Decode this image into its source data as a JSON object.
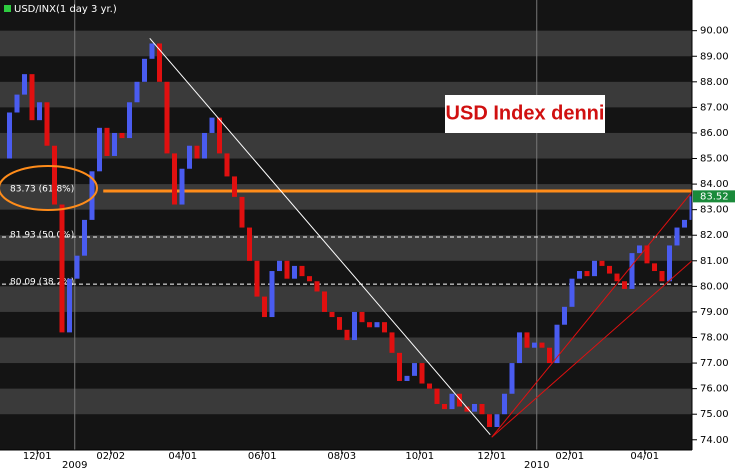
{
  "chart_data": {
    "type": "candlestick",
    "title": "USD/INX(1 day 3 yr.)",
    "annotation": "USD Index denni",
    "xlim": [
      0,
      92
    ],
    "ylim": [
      73.6,
      91.2
    ],
    "yticks": [
      {
        "value": 74,
        "label": "74.00"
      },
      {
        "value": 75,
        "label": "75.00"
      },
      {
        "value": 76,
        "label": "76.00"
      },
      {
        "value": 77,
        "label": "77.00"
      },
      {
        "value": 78,
        "label": "78.00"
      },
      {
        "value": 79,
        "label": "79.00"
      },
      {
        "value": 80,
        "label": "80.00"
      },
      {
        "value": 81,
        "label": "81.00"
      },
      {
        "value": 82,
        "label": "82.00"
      },
      {
        "value": 83,
        "label": "83.00"
      },
      {
        "value": 84,
        "label": "84.00"
      },
      {
        "value": 85,
        "label": "85.00"
      },
      {
        "value": 86,
        "label": "86.00"
      },
      {
        "value": 87,
        "label": "87.00"
      },
      {
        "value": 88,
        "label": "88.00"
      },
      {
        "value": 89,
        "label": "89.00"
      },
      {
        "value": 90,
        "label": "90.00"
      }
    ],
    "xticks": [
      {
        "value": 4.7,
        "label": "12/01"
      },
      {
        "value": 14.5,
        "label": "02/02"
      },
      {
        "value": 24.1,
        "label": "04/01"
      },
      {
        "value": 34.7,
        "label": "06/01"
      },
      {
        "value": 45.3,
        "label": "08/03"
      },
      {
        "value": 55.7,
        "label": "10/01"
      },
      {
        "value": 65.3,
        "label": "12/01"
      },
      {
        "value": 75.7,
        "label": "02/01"
      },
      {
        "value": 85.7,
        "label": "04/01"
      }
    ],
    "year_marks": [
      {
        "value": 9.7,
        "label": "2009"
      },
      {
        "value": 71.3,
        "label": "2010"
      }
    ],
    "up_color": "#4a5cf0",
    "down_color": "#e01010",
    "values": [
      85.0,
      86.8,
      87.5,
      88.3,
      86.5,
      87.2,
      85.5,
      83.2,
      78.2,
      80.3,
      81.2,
      82.6,
      84.5,
      86.2,
      85.1,
      86.0,
      85.8,
      87.2,
      88.0,
      88.9,
      89.5,
      88.0,
      85.2,
      83.2,
      84.6,
      85.5,
      85.0,
      86.0,
      86.6,
      85.2,
      84.3,
      83.5,
      82.3,
      81.0,
      79.6,
      78.8,
      80.6,
      81.0,
      80.3,
      80.8,
      80.4,
      80.2,
      79.8,
      79.0,
      78.8,
      78.3,
      77.9,
      79.0,
      78.6,
      78.4,
      78.6,
      78.2,
      77.4,
      76.3,
      76.5,
      77.0,
      76.2,
      76.0,
      75.4,
      75.2,
      75.8,
      75.3,
      75.1,
      75.4,
      75.0,
      74.5,
      75.0,
      75.8,
      77.0,
      78.2,
      77.6,
      77.8,
      77.6,
      77.0,
      78.5,
      79.2,
      80.3,
      80.6,
      80.4,
      81.0,
      80.8,
      80.5,
      80.2,
      79.9,
      81.3,
      81.6,
      80.9,
      80.6,
      80.2,
      81.6,
      82.3,
      82.6,
      83.52
    ],
    "last_value": {
      "value": 83.52,
      "label": "83.52"
    },
    "fib_levels": [
      {
        "value": 83.73,
        "label": "83.73 (61.8%)",
        "color": "#ff8c1a",
        "start": 13.5
      },
      {
        "value": 81.93,
        "label": "81.93 (50.0%)",
        "color": "#ffffff",
        "start": 0
      },
      {
        "value": 80.09,
        "label": "80.09 (38.2%)",
        "color": "#ffffff",
        "start": 0
      }
    ],
    "trend_lines": [
      {
        "color": "#ffffff",
        "x": [
          19.7,
          65.1
        ],
        "y": [
          89.7,
          74.2
        ]
      },
      {
        "color": "#e01010",
        "x": [
          65.3,
          92
        ],
        "y": [
          74.1,
          83.7
        ]
      },
      {
        "color": "#e01010",
        "x": [
          65.3,
          92
        ],
        "y": [
          74.1,
          81.0
        ]
      }
    ]
  }
}
